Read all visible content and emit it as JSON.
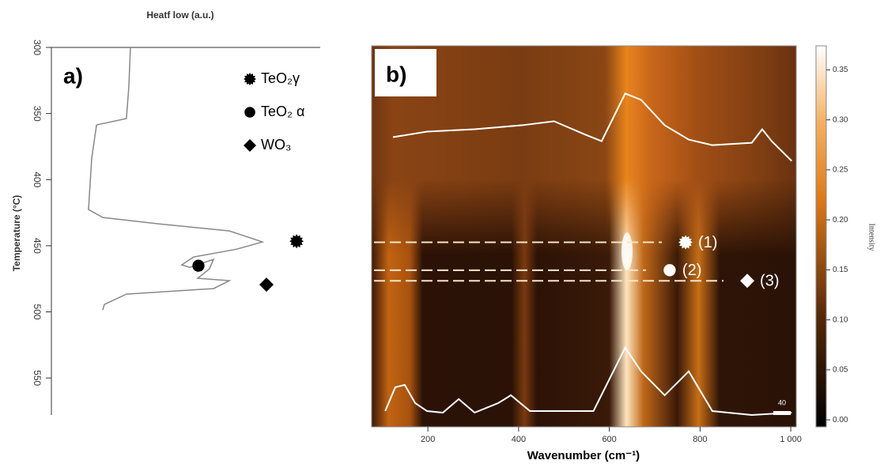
{
  "chart_data": [
    {
      "type": "line",
      "panel_label": "a)",
      "x_label": "Heatf low (a.u.)",
      "y_label": "Temperature (°C)",
      "xlim": [
        0,
        100
      ],
      "ylim": [
        300,
        578
      ],
      "yticks": [
        300,
        350,
        400,
        450,
        500,
        550
      ],
      "series": [
        {
          "color": "#888888",
          "x": [
            29.4,
            28.8,
            27.9,
            16.8,
            15.0,
            13.8,
            19.1,
            39.7,
            66.2,
            78.5,
            69.1,
            52.9,
            48.5,
            51.5,
            60.3,
            58.8,
            54.4,
            66.2,
            60.3,
            27.9,
            19.7,
            19.1
          ],
          "values": [
            300,
            329.9,
            353.8,
            358.6,
            383.7,
            422.6,
            428.6,
            433.4,
            438.8,
            447.1,
            452.5,
            458.5,
            464.5,
            466.3,
            460.3,
            467.5,
            474.6,
            476.4,
            482.4,
            486.6,
            494.4,
            498.6
          ]
        }
      ],
      "points": [
        {
          "shape": "star",
          "x": 91.2,
          "y": 446.6
        },
        {
          "shape": "circle",
          "x": 54.7,
          "y": 465.1
        },
        {
          "shape": "diamond",
          "x": 80.0,
          "y": 479.4
        }
      ],
      "legend": [
        {
          "label": "TeO₂γ",
          "shape": "star"
        },
        {
          "label": "TeO₂ α",
          "shape": "circle"
        },
        {
          "label": "WO₃",
          "shape": "diamond"
        }
      ]
    },
    {
      "type": "heatmap",
      "panel_label": "b)",
      "x_label": "Wavenumber (cm⁻¹)",
      "colorbar_label": "Intensity",
      "xlim": [
        76,
        1012
      ],
      "xticks": [
        200,
        400,
        600,
        800,
        {
          "value": 1000,
          "label": "1 000"
        }
      ],
      "ylim": [
        300,
        587
      ],
      "clim": [
        -0.007,
        0.374
      ],
      "cticks": [
        {
          "value": 0,
          "label": "0.00"
        },
        0.05,
        {
          "value": 0.1,
          "label": "0.10"
        },
        0.15,
        {
          "value": 0.2,
          "label": "0.20"
        },
        0.25,
        {
          "value": 0.3,
          "label": "0.30"
        },
        0.35
      ],
      "series": [
        {
          "color": "#ffffff",
          "x": [
            123,
            198,
            303,
            408,
            478,
            548,
            583,
            635,
            670,
            722,
            775,
            827,
            914,
            937,
            958,
            1002
          ],
          "values": [
            368.8,
            364.6,
            362.8,
            359.8,
            356.8,
            367.0,
            371.8,
            335.9,
            340.7,
            359.8,
            370.6,
            374.8,
            373.0,
            362.8,
            371.8,
            386.7
          ]
        },
        {
          "color": "#ffffff",
          "x": [
            106,
            128,
            149,
            172,
            198,
            233,
            268,
            303,
            355,
            383,
            425,
            565,
            635,
            670,
            722,
            775,
            827,
            914,
            1002
          ],
          "values": [
            575.1,
            557.2,
            555.4,
            569.1,
            575.1,
            576.3,
            566.1,
            576.3,
            569.1,
            563.2,
            575.1,
            575.1,
            527.3,
            545.2,
            563.2,
            545.2,
            575.1,
            578.1,
            576.3
          ]
        }
      ],
      "annotations": [
        {
          "label": "(1)",
          "shape": "star",
          "x": 768,
          "y": 448
        },
        {
          "label": "(2)",
          "shape": "circle",
          "x": 733,
          "y": 469
        },
        {
          "label": "(3)",
          "shape": "diamond",
          "x": 904,
          "y": 477
        }
      ],
      "scale_bar_label": "40"
    }
  ]
}
